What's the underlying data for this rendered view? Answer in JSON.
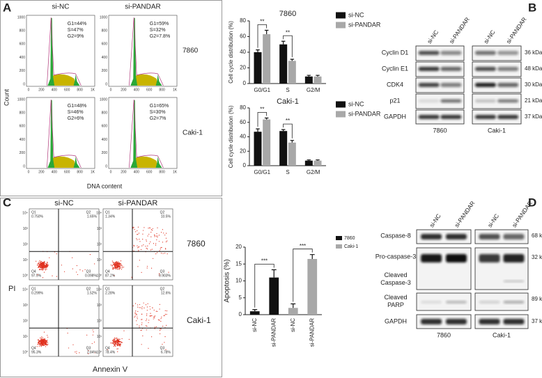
{
  "panel_labels": [
    "A",
    "B",
    "C",
    "D"
  ],
  "panel_a": {
    "columns": [
      "si-NC",
      "si-PANDAR"
    ],
    "rows": [
      "7860",
      "Caki-1"
    ],
    "y_axis_label": "Count",
    "x_axis_label": "DNA content",
    "y_ticks": [
      "1000",
      "800",
      "600",
      "400",
      "200",
      "0"
    ],
    "x_ticks": [
      "0",
      "200",
      "400",
      "600",
      "800",
      "1K"
    ],
    "phases": [
      [
        [
          "G1=44%",
          "S=47%",
          "G2=9%"
        ],
        [
          "G1=59%",
          "S=32%",
          "G2=7.8%"
        ]
      ],
      [
        [
          "G1=48%",
          "S=46%",
          "G2=6%"
        ],
        [
          "G1=65%",
          "S=30%",
          "G2=7%"
        ]
      ]
    ]
  },
  "chart_data": [
    {
      "type": "bar",
      "title": "7860",
      "y_axis_label": "Cell cycle distribution (%)",
      "categories": [
        "G0/G1",
        "S",
        "G2/M"
      ],
      "series": [
        {
          "name": "si-NC",
          "color": "#111111",
          "values": [
            40,
            50,
            9
          ],
          "errors": [
            3,
            4,
            1.5
          ]
        },
        {
          "name": "si-PANDAR",
          "color": "#a8a8a8",
          "values": [
            63,
            29,
            9
          ],
          "errors": [
            5,
            2,
            1.5
          ]
        }
      ],
      "significance": [
        "**",
        "**",
        null
      ],
      "ylim": [
        0,
        80
      ],
      "yticks": [
        0,
        20,
        40,
        60,
        80
      ]
    },
    {
      "type": "bar",
      "title": "Caki-1",
      "y_axis_label": "Cell cycle distribution (%)",
      "categories": [
        "G0/G1",
        "S",
        "G2/M"
      ],
      "series": [
        {
          "name": "si-NC",
          "color": "#111111",
          "values": [
            47,
            48,
            7
          ],
          "errors": [
            4,
            2,
            1
          ]
        },
        {
          "name": "si-PANDAR",
          "color": "#a8a8a8",
          "values": [
            64,
            32,
            7
          ],
          "errors": [
            2,
            3,
            1
          ]
        }
      ],
      "significance": [
        "**",
        "**",
        null
      ],
      "ylim": [
        0,
        80
      ],
      "yticks": [
        0,
        20,
        40,
        60,
        80
      ]
    },
    {
      "type": "bar",
      "y_axis_label": "Apoptosis (%)",
      "categories": [
        "si-NC",
        "si-PANDAR",
        "si-NC",
        "si-PANDAR"
      ],
      "series": [
        {
          "name": "7860",
          "color": "#111111",
          "values": [
            1,
            11,
            null,
            null
          ],
          "errors": [
            0.5,
            2.3,
            null,
            null
          ]
        },
        {
          "name": "Caki-1",
          "color": "#a8a8a8",
          "values": [
            null,
            null,
            2,
            16.5
          ],
          "errors": [
            null,
            null,
            1.2,
            1.3
          ]
        }
      ],
      "significance": [
        null,
        "***",
        null,
        "***"
      ],
      "ylim": [
        0,
        20
      ],
      "yticks": [
        0,
        5,
        10,
        15,
        20
      ]
    }
  ],
  "panel_b": {
    "lanes": [
      "si-NC",
      "si-PANDAR",
      "si-NC",
      "si-PANDAR"
    ],
    "proteins": [
      "Cyclin D1",
      "Cyclin E1",
      "CDK4",
      "p21",
      "GAPDH"
    ],
    "sizes": [
      "36 kDa",
      "48 kDa",
      "30 kDa",
      "21 kDa",
      "37 kDa"
    ],
    "cell_lines": [
      "7860",
      "Caki-1"
    ]
  },
  "panel_c": {
    "columns": [
      "si-NC",
      "si-PANDAR"
    ],
    "rows": [
      "7860",
      "Caki-1"
    ],
    "y_axis_label": "PI",
    "x_axis_label": "Annexin V",
    "ticks": [
      "10⁴",
      "10³",
      "10²",
      "10¹",
      "10⁰"
    ],
    "quadrant_names": [
      "Q1",
      "Q2",
      "Q3",
      "Q4"
    ],
    "quadrants": [
      [
        [
          "0.750%",
          "1.65%",
          "0.098%",
          "97.5%"
        ],
        [
          "1.34%",
          "10.5%",
          "0.903%",
          "87.2%"
        ]
      ],
      [
        [
          "0.299%",
          "1.52%",
          "2.84%",
          "95.3%"
        ],
        [
          "2.28%",
          "12.6%",
          "6.78%",
          "78.4%"
        ]
      ]
    ]
  },
  "panel_d": {
    "lanes": [
      "si-NC",
      "si-PANDAR",
      "si-NC",
      "si-PANDAR"
    ],
    "proteins": [
      "Caspase-8",
      "Pro-caspase-3",
      [
        "Cleaved",
        "Caspase-3"
      ],
      [
        "Cleaved",
        "PARP"
      ],
      "GAPDH"
    ],
    "sizes": [
      "68 kDa",
      "32 kDa",
      null,
      "89 kDa",
      "37 kDa"
    ],
    "cell_lines": [
      "7860",
      "Caki-1"
    ]
  }
}
